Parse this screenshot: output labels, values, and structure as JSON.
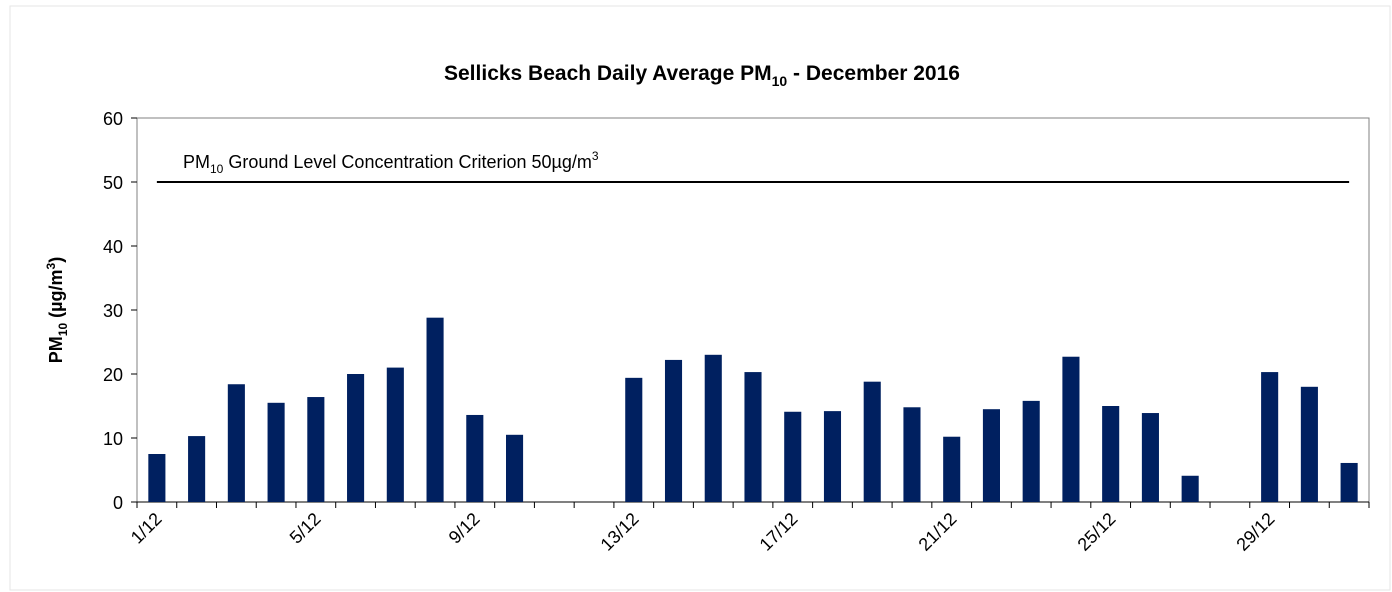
{
  "chart_data": {
    "type": "bar",
    "title": [
      "Sellicks Beach Daily Average PM",
      "10",
      " - December 2016"
    ],
    "y_label": [
      "PM",
      "10",
      " (µg/m",
      "3",
      ")"
    ],
    "annotation": [
      "PM",
      "10",
      " Ground  Level Concentration Criterion  50µg/m",
      "3"
    ],
    "reference_line": 50,
    "categories": [
      "1/12",
      null,
      null,
      null,
      "5/12",
      null,
      null,
      null,
      "9/12",
      null,
      null,
      null,
      "13/12",
      null,
      null,
      null,
      "17/12",
      null,
      null,
      null,
      "21/12",
      null,
      null,
      null,
      "25/12",
      null,
      null,
      null,
      "29/12",
      null,
      null
    ],
    "values": [
      7.5,
      10.3,
      18.4,
      15.5,
      16.4,
      20,
      21,
      28.8,
      13.6,
      10.5,
      null,
      null,
      19.4,
      22.2,
      23,
      20.3,
      14.1,
      14.2,
      18.8,
      14.8,
      10.2,
      14.5,
      15.8,
      22.7,
      15,
      13.9,
      4.1,
      null,
      20.3,
      18,
      6.1
    ],
    "color": "#002060",
    "ylim": [
      0,
      60
    ],
    "yticks": [
      0,
      10,
      20,
      30,
      40,
      50,
      60
    ],
    "grid": false
  }
}
